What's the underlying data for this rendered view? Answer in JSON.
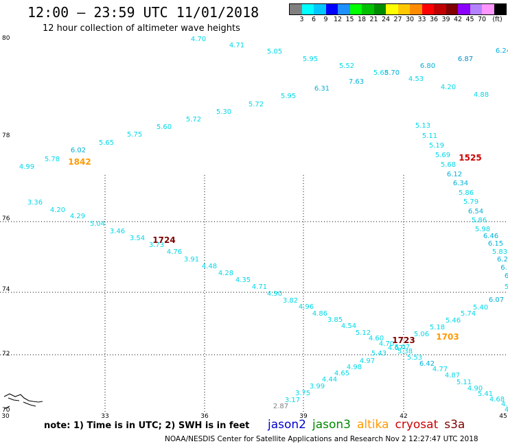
{
  "header": {
    "title": "12:00 – 23:59 UTC 11/01/2018",
    "subtitle": "12 hour collection of altimeter wave heights"
  },
  "legend": {
    "unit": "(ft)",
    "colors": [
      "#808080",
      "#00ffff",
      "#00c8ff",
      "#0000ff",
      "#1e90ff",
      "#00ff00",
      "#00c000",
      "#008c00",
      "#ffff00",
      "#ffc800",
      "#ff8c00",
      "#ff0000",
      "#c00000",
      "#800000",
      "#8c00ff",
      "#b482ff",
      "#ff96ff",
      "#000000"
    ],
    "labels": [
      "3",
      "6",
      "9",
      "12",
      "15",
      "18",
      "21",
      "24",
      "27",
      "30",
      "33",
      "36",
      "39",
      "42",
      "45",
      "70"
    ]
  },
  "axes": {
    "lat_labels": [
      "80",
      "78",
      "76",
      "74",
      "72",
      "70"
    ],
    "lon_labels": [
      "30",
      "33",
      "36",
      "39",
      "42",
      "45"
    ]
  },
  "observations": [
    {
      "t": "4.70",
      "c": "#00d8e8"
    },
    {
      "t": "4.71",
      "c": "#00d8e8"
    },
    {
      "t": "5.05",
      "c": "#00d8e8"
    },
    {
      "t": "5.95",
      "c": "#00d8e8"
    },
    {
      "t": "5.52",
      "c": "#00d8e8"
    },
    {
      "t": "5.68",
      "c": "#00d8e8"
    },
    {
      "t": "5.70",
      "c": "#00b0d8"
    },
    {
      "t": "6.80",
      "c": "#00b0d8"
    },
    {
      "t": "6.87",
      "c": "#0090c8"
    },
    {
      "t": "6.24",
      "c": "#00b0d8"
    },
    {
      "t": "6.31",
      "c": "#00b0d8"
    },
    {
      "t": "7.63",
      "c": "#00b0d8"
    },
    {
      "t": "4.53",
      "c": "#00d8e8"
    },
    {
      "t": "4.20",
      "c": "#00d8e8"
    },
    {
      "t": "4.88",
      "c": "#00d8e8"
    },
    {
      "t": "5.95",
      "c": "#00d8e8"
    },
    {
      "t": "5.72",
      "c": "#00d8e8"
    },
    {
      "t": "5.30",
      "c": "#00d8e8"
    },
    {
      "t": "5.72",
      "c": "#00d8e8"
    },
    {
      "t": "5.60",
      "c": "#00d8e8"
    },
    {
      "t": "5.75",
      "c": "#00d8e8"
    },
    {
      "t": "5.65",
      "c": "#00d8e8"
    },
    {
      "t": "6.02",
      "c": "#00b0d8"
    },
    {
      "t": "5.78",
      "c": "#00d8e8"
    },
    {
      "t": "4.99",
      "c": "#00d8e8"
    },
    {
      "t": "5.13",
      "c": "#00d8e8"
    },
    {
      "t": "5.11",
      "c": "#00d8e8"
    },
    {
      "t": "5.19",
      "c": "#00d8e8"
    },
    {
      "t": "5.69",
      "c": "#00d8e8"
    },
    {
      "t": "5.68",
      "c": "#00d8e8"
    },
    {
      "t": "6.12",
      "c": "#00b0d8"
    },
    {
      "t": "6.34",
      "c": "#00b0d8"
    },
    {
      "t": "5.86",
      "c": "#00d8e8"
    },
    {
      "t": "5.79",
      "c": "#00d8e8"
    },
    {
      "t": "6.54",
      "c": "#00b0d8"
    },
    {
      "t": "5.86",
      "c": "#00d8e8"
    },
    {
      "t": "5.98",
      "c": "#00d8e8"
    },
    {
      "t": "6.46",
      "c": "#00b0d8"
    },
    {
      "t": "6.15",
      "c": "#00b0d8"
    },
    {
      "t": "5.83",
      "c": "#00d8e8"
    },
    {
      "t": "6.2",
      "c": "#00b0d8"
    },
    {
      "t": "6.",
      "c": "#00b0d8"
    },
    {
      "t": "6",
      "c": "#00b0d8"
    },
    {
      "t": "3.36",
      "c": "#00d8e8"
    },
    {
      "t": "4.20",
      "c": "#00d8e8"
    },
    {
      "t": "4.29",
      "c": "#00d8e8"
    },
    {
      "t": "5.04",
      "c": "#00d8e8"
    },
    {
      "t": "3.46",
      "c": "#00d8e8"
    },
    {
      "t": "3.54",
      "c": "#00d8e8"
    },
    {
      "t": "3.73",
      "c": "#00d8e8"
    },
    {
      "t": "4.76",
      "c": "#00d8e8"
    },
    {
      "t": "3.91",
      "c": "#00d8e8"
    },
    {
      "t": "4.48",
      "c": "#00d8e8"
    },
    {
      "t": "4.28",
      "c": "#00d8e8"
    },
    {
      "t": "4.35",
      "c": "#00d8e8"
    },
    {
      "t": "4.71",
      "c": "#00d8e8"
    },
    {
      "t": "4.90",
      "c": "#00d8e8"
    },
    {
      "t": "3.82",
      "c": "#00d8e8"
    },
    {
      "t": "4.96",
      "c": "#00d8e8"
    },
    {
      "t": "4.86",
      "c": "#00d8e8"
    },
    {
      "t": "3.85",
      "c": "#00d8e8"
    },
    {
      "t": "4.54",
      "c": "#00d8e8"
    },
    {
      "t": "5.12",
      "c": "#00d8e8"
    },
    {
      "t": "4.60",
      "c": "#00d8e8"
    },
    {
      "t": "4.70",
      "c": "#00d8e8"
    },
    {
      "t": "4.67",
      "c": "#00d8e8"
    },
    {
      "t": "5.07",
      "c": "#00d8e8"
    },
    {
      "t": "5.38",
      "c": "#00d8e8"
    },
    {
      "t": "5.43",
      "c": "#00d8e8"
    },
    {
      "t": "5.53",
      "c": "#00d8e8"
    },
    {
      "t": "6.42",
      "c": "#00b0d8"
    },
    {
      "t": "4.77",
      "c": "#00d8e8"
    },
    {
      "t": "4.87",
      "c": "#00d8e8"
    },
    {
      "t": "5.11",
      "c": "#00d8e8"
    },
    {
      "t": "4.90",
      "c": "#00d8e8"
    },
    {
      "t": "5.41",
      "c": "#00d8e8"
    },
    {
      "t": "4.68",
      "c": "#00d8e8"
    },
    {
      "t": "4.6",
      "c": "#00d8e8"
    },
    {
      "t": "6.07",
      "c": "#00b0d8"
    },
    {
      "t": "5.40",
      "c": "#00d8e8"
    },
    {
      "t": "5.74",
      "c": "#00d8e8"
    },
    {
      "t": "5.46",
      "c": "#00d8e8"
    },
    {
      "t": "5.18",
      "c": "#00d8e8"
    },
    {
      "t": "5.06",
      "c": "#00d8e8"
    },
    {
      "t": "5",
      "c": "#00d8e8"
    },
    {
      "t": "4.97",
      "c": "#00d8e8"
    },
    {
      "t": "4.98",
      "c": "#00d8e8"
    },
    {
      "t": "4.65",
      "c": "#00d8e8"
    },
    {
      "t": "4.44",
      "c": "#00d8e8"
    },
    {
      "t": "3.99",
      "c": "#00d8e8"
    },
    {
      "t": "3.75",
      "c": "#00d8e8"
    },
    {
      "t": "3.17",
      "c": "#00d8e8"
    },
    {
      "t": "2.87",
      "c": "#808080"
    },
    {
      "t": "4",
      "c": "#00d8e8"
    }
  ],
  "pass_times": [
    {
      "t": "1842",
      "c": "#ff9900"
    },
    {
      "t": "1525",
      "c": "#cc0000"
    },
    {
      "t": "1724",
      "c": "#800000"
    },
    {
      "t": "1723",
      "c": "#800000"
    },
    {
      "t": "1703",
      "c": "#ff9900"
    }
  ],
  "footer": {
    "note": "note:  1) Time is in UTC;  2) SWH is in feet",
    "satellites": [
      {
        "name": "jason2",
        "color": "#0000cc"
      },
      {
        "name": "jason3",
        "color": "#008800"
      },
      {
        "name": "altika",
        "color": "#ff9900"
      },
      {
        "name": "cryosat",
        "color": "#cc0000"
      },
      {
        "name": "s3a",
        "color": "#800000"
      }
    ],
    "credit": "NOAA/NESDIS Center for Satellite Applications and Research     Nov  2 12:27:47 UTC 2018"
  }
}
